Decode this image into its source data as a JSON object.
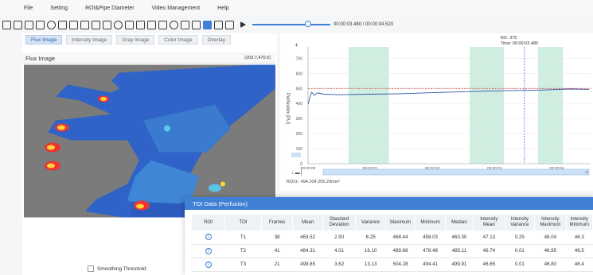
{
  "menu": [
    "File",
    "Setting",
    "ROI&Pipe Diameter",
    "Video Management",
    "Help"
  ],
  "toolbar": {
    "time": "00:00:03.480 / 00:00:04.520",
    "progress": 0.77
  },
  "image_tabs": [
    "Flux Image",
    "Intensity Image",
    "Gray Image",
    "Color Image",
    "Overlay"
  ],
  "image_panel": {
    "title": "Flux Image",
    "coord": "(203,7,470.6)"
  },
  "smoothing_label": "Smoothing Threshold",
  "chart": {
    "annotation_no": "NO. 375",
    "annotation_time": "Time: 00:00:03.480",
    "ylabel": "Perfusion (PU)",
    "yticks": [
      "0",
      "100",
      "200",
      "300",
      "400",
      "500",
      "600",
      "700"
    ],
    "xticks": [
      "00:00:00",
      "00:00:01",
      "00:00:02",
      "00:00:03",
      "00:00:04"
    ],
    "reference_value": 500,
    "series_color": "#3355aa",
    "reference_color": "#d62d2d",
    "band_color": "#cfeee0"
  },
  "chart_data": {
    "type": "line",
    "ylim": [
      0,
      760
    ],
    "xlim": [
      0,
      4.52
    ],
    "x": [
      0.0,
      0.03,
      0.06,
      0.1,
      0.15,
      0.25,
      0.5,
      1.0,
      1.5,
      2.0,
      2.5,
      3.0,
      3.48,
      3.8,
      4.2,
      4.52
    ],
    "values": [
      395,
      440,
      475,
      455,
      470,
      462,
      458,
      462,
      465,
      472,
      478,
      484,
      487,
      490,
      496,
      494
    ],
    "reference_y": 500,
    "bands": [
      [
        0.65,
        1.3
      ],
      [
        2.6,
        3.15
      ],
      [
        3.7,
        4.1
      ]
    ],
    "cursor_x": 3.48
  },
  "roi_info": "ROI①: 494.204   205.29mm²",
  "toi": {
    "title": "TOI Data (Perfusion)",
    "columns": [
      "ROI",
      "TOI",
      "Frames",
      "Mean",
      "Standard Deviation",
      "Variance",
      "Maximum",
      "Minimum",
      "Median",
      "Intensity Mean",
      "Intensity Variance",
      "Intensity Maximum",
      "Intensity Minimum"
    ],
    "rows": [
      [
        "1",
        "T1",
        "38",
        "463.52",
        "2.50",
        "6.25",
        "468.44",
        "458.03",
        "463.30",
        "47.13",
        "0.25",
        "48.04",
        "46.3"
      ],
      [
        "1",
        "T2",
        "41",
        "484.31",
        "4.01",
        "16.10",
        "489.68",
        "478.48",
        "485.11",
        "46.74",
        "0.01",
        "46.95",
        "46.5"
      ],
      [
        "1",
        "T3",
        "21",
        "499.85",
        "3.62",
        "13.13",
        "504.28",
        "494.41",
        "499.91",
        "46.65",
        "0.01",
        "46.80",
        "46.4"
      ]
    ]
  }
}
